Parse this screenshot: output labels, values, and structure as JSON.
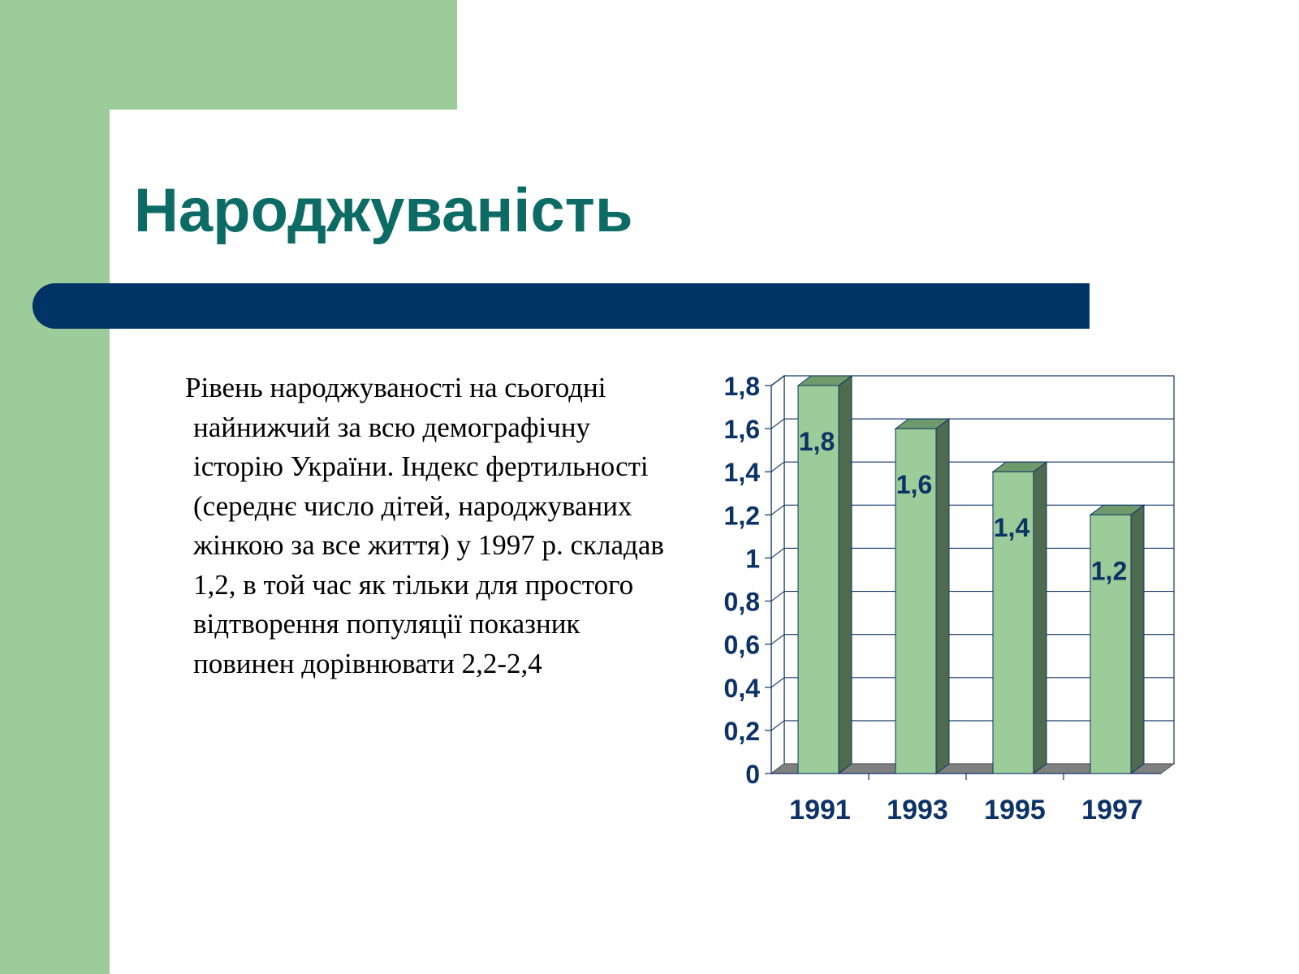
{
  "slide": {
    "title": "Народжуваність",
    "body": "Рівень народжуваності на сьогодні найнижчий за всю демографічну історію України. Індекс фертильності (середнє число дітей, народжуваних жінкою за все життя) у 1997 р. складав 1,2, в той час як тільки для простого відтворення популяції показник повинен дорівнювати 2,2-2,4"
  },
  "colors": {
    "green_panel": "#9ccc99",
    "title": "#0d6b66",
    "rule": "#003366",
    "bar_front": "#9ccc99",
    "bar_side": "#4f6b4f",
    "bar_top": "#6f9a6c",
    "floor": "#808080",
    "axis_labels": "#0d3366"
  },
  "chart_data": {
    "type": "bar",
    "categories": [
      "1991",
      "1993",
      "1995",
      "1997"
    ],
    "values": [
      1.8,
      1.6,
      1.4,
      1.2
    ],
    "data_labels": [
      "1,8",
      "1,6",
      "1,4",
      "1,2"
    ],
    "y_ticks": [
      "0",
      "0,2",
      "0,4",
      "0,6",
      "0,8",
      "1",
      "1,2",
      "1,4",
      "1,6",
      "1,8"
    ],
    "ylim": [
      0,
      1.8
    ],
    "title": "",
    "xlabel": "",
    "ylabel": "",
    "grid": true,
    "legend": "none",
    "style": "3d-column"
  }
}
